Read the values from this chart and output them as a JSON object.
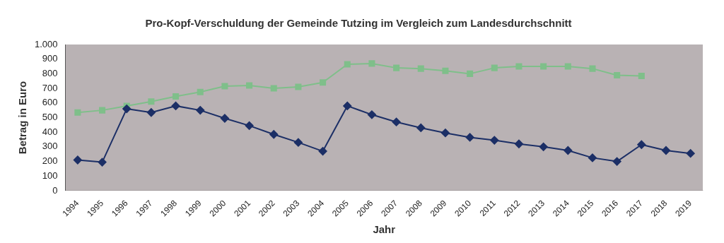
{
  "chart_data": {
    "type": "line",
    "title": "Pro-Kopf-Verschuldung der Gemeinde Tutzing im Vergleich zum Landesdurchschnitt",
    "xlabel": "Jahr",
    "ylabel": "Betrag in Euro",
    "categories": [
      "1994",
      "1995",
      "1996",
      "1997",
      "1998",
      "1999",
      "2000",
      "2001",
      "2002",
      "2003",
      "2004",
      "2005",
      "2006",
      "2007",
      "2008",
      "2009",
      "2010",
      "2011",
      "2012",
      "2013",
      "2014",
      "2015",
      "2016",
      "2017",
      "2018",
      "2019"
    ],
    "series": [
      {
        "color": "#1c2f66",
        "marker": "diamond",
        "values": [
          210,
          195,
          560,
          535,
          580,
          550,
          495,
          445,
          385,
          330,
          270,
          580,
          520,
          470,
          430,
          395,
          365,
          345,
          320,
          300,
          275,
          225,
          200,
          315,
          275,
          255
        ]
      },
      {
        "color": "#7fbf8a",
        "marker": "square",
        "values": [
          535,
          550,
          580,
          610,
          645,
          675,
          715,
          720,
          700,
          710,
          740,
          865,
          870,
          840,
          835,
          820,
          800,
          840,
          850,
          850,
          850,
          835,
          790,
          785,
          null,
          null
        ]
      }
    ],
    "ylim": [
      0,
      1000
    ],
    "yticks": [
      0,
      100,
      200,
      300,
      400,
      500,
      600,
      700,
      800,
      900,
      {
        "value": 1000,
        "label": "1.000"
      }
    ],
    "grid": false,
    "legend": false
  }
}
